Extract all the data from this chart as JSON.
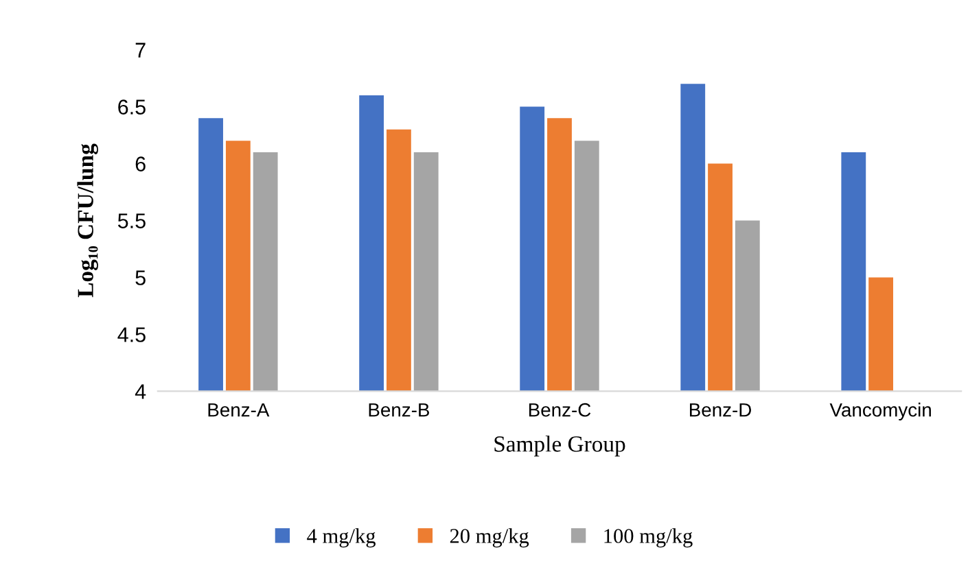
{
  "chart_data": {
    "type": "bar",
    "xlabel": "Sample Group",
    "ylabel": "Log₁₀ CFU/lung",
    "categories": [
      "Benz-A",
      "Benz-B",
      "Benz-C",
      "Benz-D",
      "Vancomycin"
    ],
    "series": [
      {
        "name": "4 mg/kg",
        "color": "#4472c4",
        "values": [
          6.4,
          6.6,
          6.5,
          6.7,
          6.1
        ]
      },
      {
        "name": "20 mg/kg",
        "color": "#ed7d31",
        "values": [
          6.2,
          6.3,
          6.4,
          6.0,
          5.0
        ]
      },
      {
        "name": "100 mg/kg",
        "color": "#a5a5a5",
        "values": [
          6.1,
          6.1,
          6.2,
          5.5,
          null
        ]
      }
    ],
    "ylim": [
      4,
      7
    ],
    "yticks": [
      4,
      4.5,
      5,
      5.5,
      6,
      6.5,
      7
    ],
    "grid": false,
    "legend": "bottom"
  }
}
